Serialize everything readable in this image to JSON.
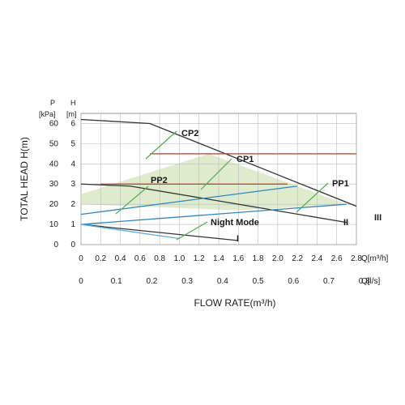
{
  "chart_data": {
    "type": "line",
    "xlabel": "FLOW RATE(m³/h)",
    "ylabel": "TOTAL HEAD H(m)",
    "x_units": {
      "q_m3h": "Q[m³/h]",
      "q_ls": "Q[l/s]"
    },
    "y_units": {
      "pressure": "P",
      "pressure_unit": "[kPa]",
      "head": "H",
      "head_unit": "[m]"
    },
    "xlim": [
      0,
      2.8
    ],
    "ylim": [
      0,
      6.5
    ],
    "x_ticks": [
      "0",
      "0.2",
      "0.4",
      "0.6",
      "0.8",
      "1.0",
      "1.2",
      "1.4",
      "1.6",
      "1.8",
      "2.0",
      "2.2",
      "2.4",
      "2.6",
      "2.8"
    ],
    "x_ls_ticks": [
      "0",
      "0.1",
      "0.2",
      "0.3",
      "0.4",
      "0.5",
      "0.6",
      "0.7",
      "0.8"
    ],
    "y_head_ticks": [
      "0",
      "1",
      "2",
      "3",
      "4",
      "5",
      "6"
    ],
    "y_kpa_ticks": [
      "0",
      "10",
      "20",
      "30",
      "40",
      "50",
      "60"
    ],
    "grid": true,
    "series": [
      {
        "name": "III",
        "color": "#333333",
        "x": [
          0,
          0.7,
          2.8
        ],
        "y": [
          6.2,
          6.0,
          1.9
        ]
      },
      {
        "name": "II",
        "color": "#333333",
        "x": [
          0,
          0.5,
          2.7
        ],
        "y": [
          3.0,
          2.9,
          1.1
        ]
      },
      {
        "name": "I",
        "color": "#333333",
        "x": [
          0,
          1.6
        ],
        "y": [
          1.0,
          0.2
        ]
      },
      {
        "name": "CP2",
        "color": "#c0392b",
        "x": [
          0.7,
          2.8
        ],
        "y": [
          4.5,
          4.5
        ]
      },
      {
        "name": "CP1",
        "color": "#c0392b",
        "x": [
          0.2,
          2.1
        ],
        "y": [
          3.0,
          3.0
        ]
      },
      {
        "name": "PP2",
        "color": "#2e86c1",
        "x": [
          0,
          2.2
        ],
        "y": [
          1.5,
          2.9
        ]
      },
      {
        "name": "PP1",
        "color": "#2e86c1",
        "x": [
          0,
          2.7
        ],
        "y": [
          1.0,
          2.0
        ]
      },
      {
        "name": "Night Mode",
        "color": "#5dade2",
        "x": [
          0,
          1.0
        ],
        "y": [
          1.0,
          0.3
        ]
      }
    ],
    "shaded_region": {
      "color": "#d9e8c4",
      "x": [
        0,
        1.3,
        2.7,
        1.6,
        0
      ],
      "y": [
        2.5,
        4.5,
        2.0,
        1.7,
        2.0
      ]
    },
    "annotations": [
      "CP2",
      "CP1",
      "PP2",
      "PP1",
      "Night Mode",
      "I",
      "II",
      "III"
    ]
  }
}
